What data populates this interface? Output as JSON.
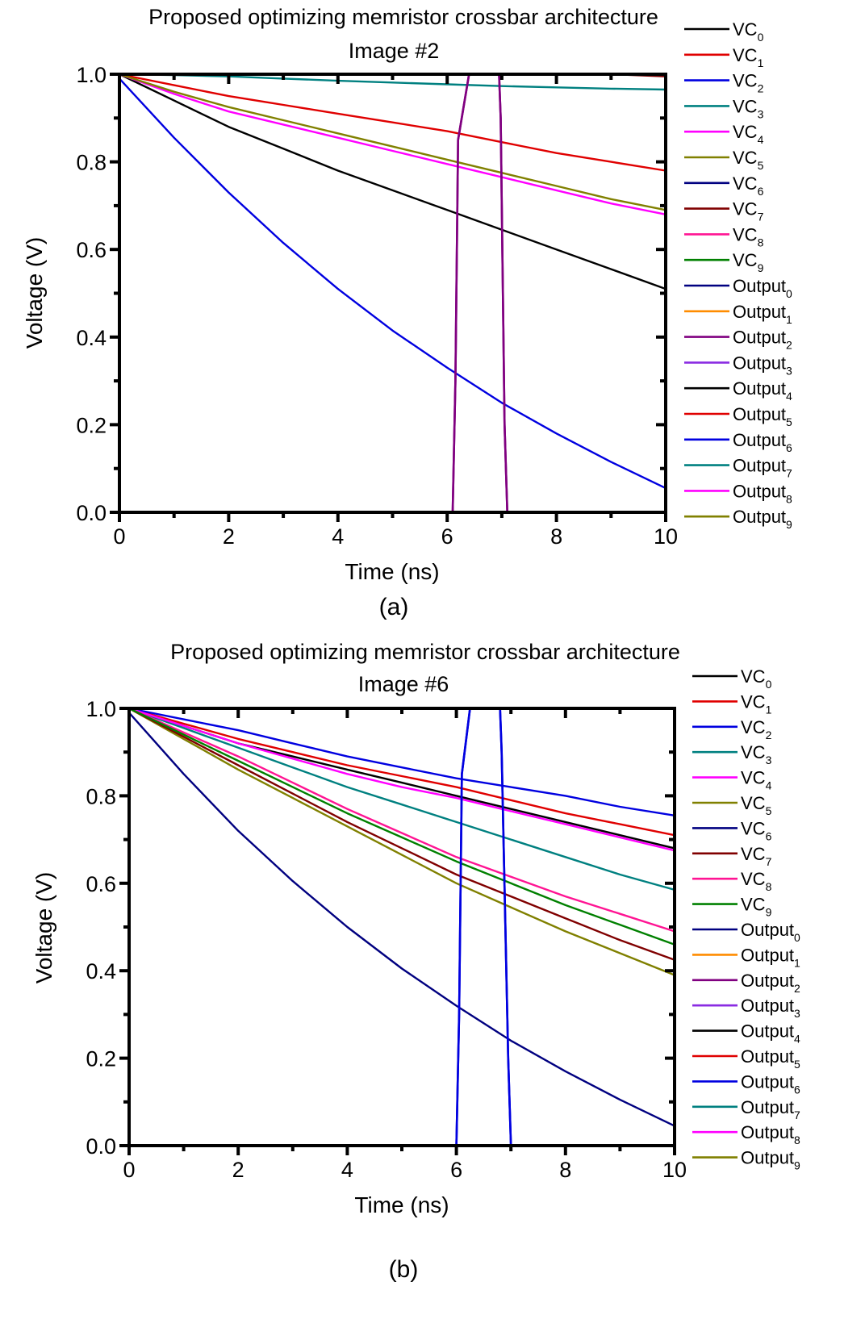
{
  "chart_data": [
    {
      "type": "line",
      "caption": "(a)",
      "title": "Proposed optimizing memristor crossbar architecture",
      "subtitle": "Image #2",
      "xlabel": "Time (ns)",
      "ylabel": "Voltage (V)",
      "xlim": [
        0,
        10
      ],
      "ylim": [
        0,
        1.0
      ],
      "xticks": [
        "0",
        "2",
        "4",
        "6",
        "8",
        "10"
      ],
      "yticks": [
        "0.0",
        "0.2",
        "0.4",
        "0.6",
        "0.8",
        "1.0"
      ],
      "grid": false,
      "legend_position": "outside-right",
      "x": [
        0,
        1,
        2,
        3,
        4,
        5,
        6,
        7,
        8,
        9,
        10
      ],
      "series": [
        {
          "name": "VC",
          "sub": "0",
          "color": "#000000",
          "values": [
            1.0,
            0.94,
            0.88,
            0.83,
            0.78,
            0.735,
            0.69,
            0.645,
            0.6,
            0.555,
            0.51
          ]
        },
        {
          "name": "VC",
          "sub": "1",
          "color": "#e00000",
          "values": [
            1.0,
            0.975,
            0.95,
            0.93,
            0.91,
            0.89,
            0.87,
            0.845,
            0.82,
            0.8,
            0.78
          ]
        },
        {
          "name": "VC",
          "sub": "2",
          "color": "#0000e0",
          "values": [
            0.99,
            0.855,
            0.73,
            0.615,
            0.51,
            0.415,
            0.33,
            0.25,
            0.18,
            0.115,
            0.055
          ]
        },
        {
          "name": "VC",
          "sub": "3",
          "color": "#008080",
          "values": [
            1.0,
            0.998,
            0.995,
            0.99,
            0.985,
            0.981,
            0.977,
            0.973,
            0.97,
            0.967,
            0.965
          ]
        },
        {
          "name": "VC",
          "sub": "4",
          "color": "#ff00ff",
          "values": [
            1.0,
            0.955,
            0.915,
            0.885,
            0.855,
            0.825,
            0.795,
            0.765,
            0.735,
            0.705,
            0.68
          ]
        },
        {
          "name": "VC",
          "sub": "5",
          "color": "#808000",
          "values": [
            1.0,
            0.96,
            0.925,
            0.895,
            0.865,
            0.835,
            0.805,
            0.775,
            0.745,
            0.715,
            0.69
          ]
        },
        {
          "name": "VC",
          "sub": "6",
          "color": "#000080",
          "values": [
            1.0,
            1.0,
            1.0,
            1.0,
            1.0,
            1.0,
            1.0,
            1.0,
            1.0,
            1.0,
            1.0
          ]
        },
        {
          "name": "VC",
          "sub": "7",
          "color": "#800000",
          "values": [
            1.0,
            1.0,
            1.0,
            1.0,
            1.0,
            1.0,
            1.0,
            1.0,
            1.0,
            1.0,
            0.995
          ]
        },
        {
          "name": "VC",
          "sub": "8",
          "color": "#ff1493",
          "values": [
            1.0,
            1.0,
            1.0,
            1.0,
            1.0,
            1.0,
            1.0,
            1.0,
            1.0,
            1.0,
            1.0
          ]
        },
        {
          "name": "VC",
          "sub": "9",
          "color": "#008000",
          "values": [
            1.0,
            1.0,
            1.0,
            1.0,
            1.0,
            1.0,
            1.0,
            1.0,
            1.0,
            1.0,
            1.0
          ]
        },
        {
          "name": "Output",
          "sub": "0",
          "color": "#000080",
          "values": [
            0,
            0,
            0,
            0,
            0,
            0,
            0,
            0,
            0,
            0,
            0
          ]
        },
        {
          "name": "Output",
          "sub": "1",
          "color": "#ff8c00",
          "values": [
            0,
            0,
            0,
            0,
            0,
            0,
            0,
            0,
            0,
            0,
            0
          ]
        },
        {
          "name": "Output",
          "sub": "2",
          "color": "#800080",
          "pulse": {
            "rise_start": 6.1,
            "rise_end": 6.4,
            "fall_start": 6.95,
            "fall_end": 7.1,
            "high": 1.0
          },
          "values": [
            0,
            0,
            0,
            0,
            0,
            0,
            0,
            0,
            0,
            0,
            0
          ]
        },
        {
          "name": "Output",
          "sub": "3",
          "color": "#8a2be2",
          "values": [
            0,
            0,
            0,
            0,
            0,
            0,
            0,
            0,
            0,
            0,
            0
          ]
        },
        {
          "name": "Output",
          "sub": "4",
          "color": "#000000",
          "values": [
            0,
            0,
            0,
            0,
            0,
            0,
            0,
            0,
            0,
            0,
            0
          ]
        },
        {
          "name": "Output",
          "sub": "5",
          "color": "#e00000",
          "values": [
            0,
            0,
            0,
            0,
            0,
            0,
            0,
            0,
            0,
            0,
            0
          ]
        },
        {
          "name": "Output",
          "sub": "6",
          "color": "#0000e0",
          "values": [
            0,
            0,
            0,
            0,
            0,
            0,
            0,
            0,
            0,
            0,
            0
          ]
        },
        {
          "name": "Output",
          "sub": "7",
          "color": "#008080",
          "values": [
            0,
            0,
            0,
            0,
            0,
            0,
            0,
            0,
            0,
            0,
            0
          ]
        },
        {
          "name": "Output",
          "sub": "8",
          "color": "#ff00ff",
          "values": [
            0,
            0,
            0,
            0,
            0,
            0,
            0,
            0,
            0,
            0,
            0
          ]
        },
        {
          "name": "Output",
          "sub": "9",
          "color": "#808000",
          "values": [
            0,
            0,
            0,
            0,
            0,
            0,
            0,
            0,
            0,
            0,
            0
          ]
        }
      ]
    },
    {
      "type": "line",
      "caption": "(b)",
      "title": "Proposed optimizing memristor crossbar architecture",
      "subtitle": "Image #6",
      "xlabel": "Time (ns)",
      "ylabel": "Voltage (V)",
      "xlim": [
        0,
        10
      ],
      "ylim": [
        0,
        1.0
      ],
      "xticks": [
        "0",
        "2",
        "4",
        "6",
        "8",
        "10"
      ],
      "yticks": [
        "0.0",
        "0.2",
        "0.4",
        "0.6",
        "0.8",
        "1.0"
      ],
      "grid": false,
      "legend_position": "outside-right",
      "x": [
        0,
        1,
        2,
        3,
        4,
        5,
        6,
        7,
        8,
        9,
        10
      ],
      "series": [
        {
          "name": "VC",
          "sub": "0",
          "color": "#000000",
          "values": [
            1.0,
            0.96,
            0.92,
            0.89,
            0.86,
            0.83,
            0.8,
            0.77,
            0.74,
            0.71,
            0.68
          ]
        },
        {
          "name": "VC",
          "sub": "1",
          "color": "#e00000",
          "values": [
            1.0,
            0.965,
            0.93,
            0.9,
            0.87,
            0.845,
            0.82,
            0.79,
            0.76,
            0.735,
            0.71
          ]
        },
        {
          "name": "VC",
          "sub": "2",
          "color": "#0000e0",
          "values": [
            1.0,
            0.975,
            0.95,
            0.92,
            0.89,
            0.865,
            0.84,
            0.82,
            0.8,
            0.775,
            0.755
          ]
        },
        {
          "name": "VC",
          "sub": "3",
          "color": "#008080",
          "values": [
            1.0,
            0.955,
            0.91,
            0.865,
            0.82,
            0.78,
            0.74,
            0.7,
            0.66,
            0.62,
            0.585
          ]
        },
        {
          "name": "VC",
          "sub": "4",
          "color": "#ff00ff",
          "values": [
            1.0,
            0.96,
            0.92,
            0.885,
            0.85,
            0.82,
            0.795,
            0.765,
            0.735,
            0.705,
            0.675
          ]
        },
        {
          "name": "VC",
          "sub": "5",
          "color": "#808000",
          "values": [
            1.0,
            0.93,
            0.86,
            0.795,
            0.73,
            0.665,
            0.6,
            0.545,
            0.49,
            0.44,
            0.39
          ]
        },
        {
          "name": "VC",
          "sub": "6",
          "color": "#000080",
          "values": [
            0.99,
            0.85,
            0.72,
            0.605,
            0.5,
            0.405,
            0.32,
            0.24,
            0.17,
            0.105,
            0.045
          ]
        },
        {
          "name": "VC",
          "sub": "7",
          "color": "#800000",
          "values": [
            1.0,
            0.935,
            0.87,
            0.805,
            0.74,
            0.68,
            0.62,
            0.57,
            0.52,
            0.47,
            0.425
          ]
        },
        {
          "name": "VC",
          "sub": "8",
          "color": "#ff1493",
          "values": [
            1.0,
            0.945,
            0.89,
            0.83,
            0.77,
            0.715,
            0.66,
            0.615,
            0.57,
            0.53,
            0.49
          ]
        },
        {
          "name": "VC",
          "sub": "9",
          "color": "#008000",
          "values": [
            1.0,
            0.94,
            0.88,
            0.82,
            0.76,
            0.705,
            0.65,
            0.6,
            0.55,
            0.505,
            0.46
          ]
        },
        {
          "name": "Output",
          "sub": "0",
          "color": "#000080",
          "values": [
            0,
            0,
            0,
            0,
            0,
            0,
            0,
            0,
            0,
            0,
            0
          ]
        },
        {
          "name": "Output",
          "sub": "1",
          "color": "#ff8c00",
          "values": [
            0,
            0,
            0,
            0,
            0,
            0,
            0,
            0,
            0,
            0,
            0
          ]
        },
        {
          "name": "Output",
          "sub": "2",
          "color": "#800080",
          "values": [
            0,
            0,
            0,
            0,
            0,
            0,
            0,
            0,
            0,
            0,
            0
          ]
        },
        {
          "name": "Output",
          "sub": "3",
          "color": "#8a2be2",
          "values": [
            0,
            0,
            0,
            0,
            0,
            0,
            0,
            0,
            0,
            0,
            0
          ]
        },
        {
          "name": "Output",
          "sub": "4",
          "color": "#000000",
          "values": [
            0,
            0,
            0,
            0,
            0,
            0,
            0,
            0,
            0,
            0,
            0
          ]
        },
        {
          "name": "Output",
          "sub": "5",
          "color": "#e00000",
          "values": [
            0,
            0,
            0,
            0,
            0,
            0,
            0,
            0,
            0,
            0,
            0
          ]
        },
        {
          "name": "Output",
          "sub": "6",
          "color": "#0000e0",
          "pulse": {
            "rise_start": 6.0,
            "rise_end": 6.25,
            "fall_start": 6.8,
            "fall_end": 7.0,
            "high": 1.0
          },
          "values": [
            0,
            0,
            0,
            0,
            0,
            0,
            0,
            0,
            0,
            0,
            0
          ]
        },
        {
          "name": "Output",
          "sub": "7",
          "color": "#008080",
          "values": [
            0,
            0,
            0,
            0,
            0,
            0,
            0,
            0,
            0,
            0,
            0
          ]
        },
        {
          "name": "Output",
          "sub": "8",
          "color": "#ff00ff",
          "values": [
            0,
            0,
            0,
            0,
            0,
            0,
            0,
            0,
            0,
            0,
            0
          ]
        },
        {
          "name": "Output",
          "sub": "9",
          "color": "#808000",
          "values": [
            0,
            0,
            0,
            0,
            0,
            0,
            0,
            0,
            0,
            0,
            0
          ]
        }
      ]
    }
  ]
}
